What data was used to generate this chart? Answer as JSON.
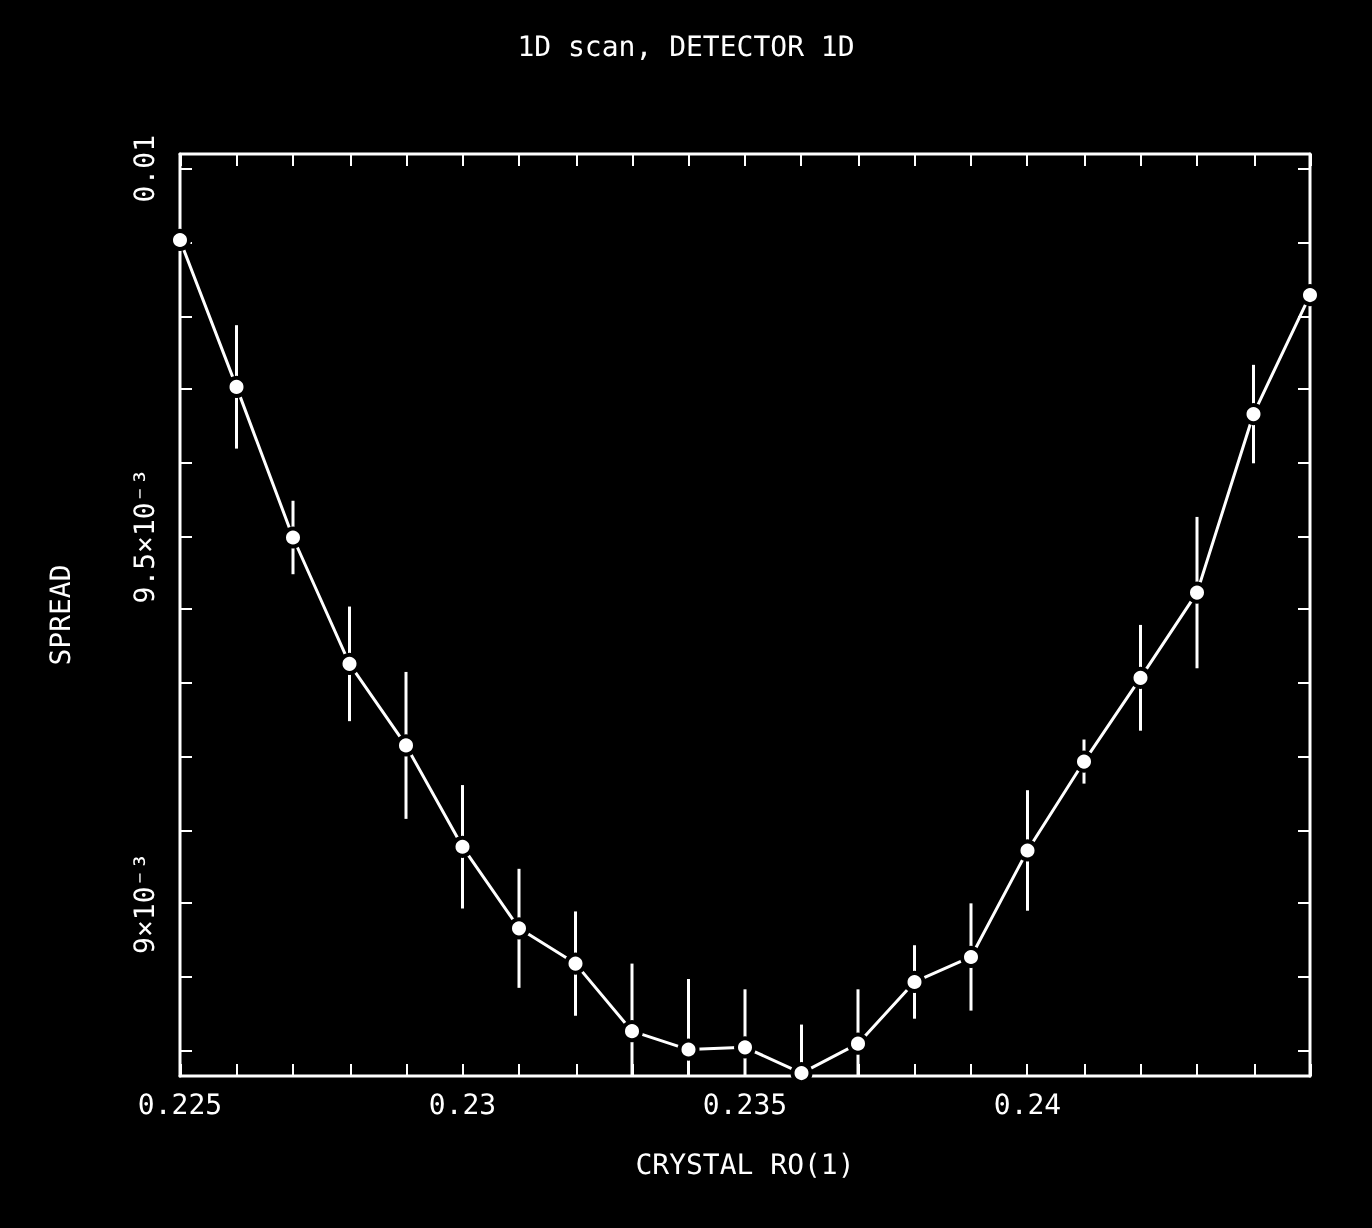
{
  "chart_data": {
    "type": "line",
    "title": "1D scan, DETECTOR 1D",
    "xlabel": "CRYSTAL RO(1)",
    "ylabel": "SPREAD",
    "x": [
      0.225,
      0.226,
      0.227,
      0.228,
      0.229,
      0.23,
      0.231,
      0.232,
      0.233,
      0.234,
      0.235,
      0.236,
      0.237,
      0.238,
      0.239,
      0.24,
      0.241,
      0.242,
      0.243,
      0.244,
      0.245
    ],
    "series": [
      {
        "color": "#ffffff",
        "values": [
          0.009903,
          0.009703,
          0.009498,
          0.009326,
          0.009215,
          0.009077,
          0.008966,
          0.008918,
          0.008826,
          0.008801,
          0.008804,
          0.008769,
          0.008809,
          0.008893,
          0.008927,
          0.009072,
          0.009193,
          0.009307,
          0.009423,
          0.009666,
          0.009828
        ],
        "errors": [
          null,
          8.4e-05,
          5e-05,
          7.8e-05,
          0.0001,
          8.4e-05,
          8.1e-05,
          7.1e-05,
          9.2e-05,
          9.6e-05,
          7.9e-05,
          6.6e-05,
          7.4e-05,
          5e-05,
          7.3e-05,
          8.2e-05,
          3e-05,
          7.2e-05,
          0.000103,
          6.7e-05,
          null
        ]
      }
    ],
    "xlim": [
      0.225,
      0.245
    ],
    "xticks": [
      0.225,
      {
        "value": 0.226,
        "label": null
      },
      {
        "value": 0.227,
        "label": null
      },
      {
        "value": 0.228,
        "label": null
      },
      {
        "value": 0.229,
        "label": null
      },
      0.23,
      {
        "value": 0.231,
        "label": null
      },
      {
        "value": 0.232,
        "label": null
      },
      {
        "value": 0.233,
        "label": null
      },
      {
        "value": 0.234,
        "label": null
      },
      0.235,
      {
        "value": 0.236,
        "label": null
      },
      {
        "value": 0.237,
        "label": null
      },
      {
        "value": 0.238,
        "label": null
      },
      {
        "value": 0.239,
        "label": null
      },
      0.24,
      {
        "value": 0.241,
        "label": null
      },
      {
        "value": 0.242,
        "label": null
      },
      {
        "value": 0.243,
        "label": null
      },
      {
        "value": 0.244,
        "label": null
      },
      {
        "value": 0.245,
        "label": null
      }
    ],
    "ylim": [
      0.008765,
      0.01002
    ],
    "yticks": [
      {
        "value": 0.0088,
        "label": null
      },
      {
        "value": 0.0089,
        "label": null
      },
      {
        "value": 0.009,
        "label": "9×10⁻³"
      },
      {
        "value": 0.0091,
        "label": null
      },
      {
        "value": 0.0092,
        "label": null
      },
      {
        "value": 0.0093,
        "label": null
      },
      {
        "value": 0.0094,
        "label": null
      },
      {
        "value": 0.0095,
        "label": "9.5×10⁻³"
      },
      {
        "value": 0.0096,
        "label": null
      },
      {
        "value": 0.0097,
        "label": null
      },
      {
        "value": 0.0098,
        "label": null
      },
      {
        "value": 0.0099,
        "label": null
      },
      0.01
    ],
    "marker": "circle",
    "line_style": "solid",
    "grid": false,
    "legend": false
  }
}
